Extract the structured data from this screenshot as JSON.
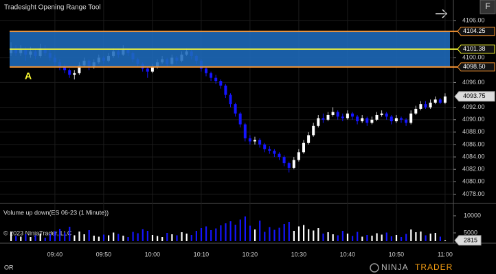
{
  "window": {
    "title": "Tradesight Opening Range Tool",
    "button": "F",
    "footer_label": "OR",
    "logo_left": "NINJA",
    "logo_right": "TRADER"
  },
  "chart_data": [
    {
      "type": "candlestick",
      "up_color": "#ffffff",
      "down_color": "#1515ff",
      "categories": [
        null,
        null,
        null,
        null,
        null,
        null,
        null,
        null,
        null,
        "09:40",
        null,
        null,
        null,
        null,
        null,
        null,
        null,
        null,
        null,
        "09:50",
        null,
        null,
        null,
        null,
        null,
        null,
        null,
        null,
        null,
        "10:00",
        null,
        null,
        null,
        null,
        null,
        null,
        null,
        null,
        null,
        "10:10",
        null,
        null,
        null,
        null,
        null,
        null,
        null,
        null,
        null,
        "10:20",
        null,
        null,
        null,
        null,
        null,
        null,
        null,
        null,
        null,
        "10:30",
        null,
        null,
        null,
        null,
        null,
        null,
        null,
        null,
        null,
        "10:40",
        null,
        null,
        null,
        null,
        null,
        null,
        null,
        null,
        null,
        "10:50",
        null,
        null,
        null,
        null,
        null,
        null,
        null,
        null,
        null,
        "11:00"
      ],
      "open": [
        4100.75,
        4101.5,
        4100.75,
        4101.25,
        4100.5,
        4101,
        4100.25,
        4101.5,
        4100.75,
        4100,
        4099.25,
        4098.5,
        4098,
        4097.25,
        4097.5,
        4098.75,
        4099.5,
        4098.5,
        4099.25,
        4100,
        4099.5,
        4100.25,
        4101,
        4100.5,
        4101.25,
        4100.75,
        4099.75,
        4099,
        4098.25,
        4097.75,
        4098.5,
        4099.25,
        4099.75,
        4099,
        4100,
        4099.5,
        4100.5,
        4101,
        4100.25,
        4099.5,
        4098.25,
        4097.5,
        4096.75,
        4096.25,
        4095.5,
        4094,
        4092.5,
        4091,
        4089.25,
        4087,
        4086.5,
        4086.75,
        4086,
        4085.25,
        4085,
        4084.5,
        4084,
        4083,
        4082.25,
        4083.5,
        4084.75,
        4086.25,
        4087.5,
        4089,
        4090.25,
        4090,
        4090.75,
        4091.25,
        4090.5,
        4090.25,
        4091,
        4090.5,
        4089.75,
        4090.25,
        4089.5,
        4090,
        4090.75,
        4091,
        4090.5,
        4089.75,
        4090.25,
        4090,
        4089.5,
        4091,
        4091.75,
        4092.5,
        4092,
        4092.75,
        4093.25,
        4092.75
      ],
      "high": [
        4102.5,
        4102,
        4102,
        4101.75,
        4101.75,
        4101.5,
        4102.25,
        4102,
        4101.25,
        4100.5,
        4099.75,
        4099,
        4098.25,
        4098,
        4099.25,
        4100,
        4099.75,
        4099.75,
        4100.5,
        4100.25,
        4100.75,
        4101.5,
        4101.5,
        4102,
        4101.5,
        4101,
        4100,
        4099.25,
        4098.5,
        4099,
        4099.75,
        4100.25,
        4100,
        4100.5,
        4100.25,
        4101,
        4101.5,
        4101.25,
        4100.5,
        4099.75,
        4098.5,
        4097.75,
        4097.25,
        4096.5,
        4095.75,
        4094.25,
        4092.75,
        4091.25,
        4089.5,
        4087.5,
        4087.25,
        4087,
        4086.25,
        4085.75,
        4085.25,
        4084.75,
        4084.25,
        4083.25,
        4084,
        4085.25,
        4086.75,
        4088,
        4089.5,
        4090.75,
        4091,
        4091.25,
        4092,
        4091.5,
        4091,
        4091.5,
        4091.25,
        4090.75,
        4090.75,
        4090.5,
        4090.5,
        4091.25,
        4091.5,
        4091.25,
        4090.75,
        4090.75,
        4090.5,
        4090.25,
        4091.5,
        4092.25,
        4093,
        4093,
        4093.25,
        4093.75,
        4093.5,
        4094.25
      ],
      "low": [
        4100.25,
        4100.25,
        4100.25,
        4099.5,
        4100,
        4099.75,
        4100,
        4100.25,
        4099.5,
        4098.75,
        4098,
        4097.5,
        4096.75,
        4096.5,
        4097.25,
        4098.5,
        4098,
        4098.25,
        4099,
        4099,
        4099.25,
        4100,
        4100,
        4100.25,
        4100.25,
        4099.25,
        4098.5,
        4097.75,
        4096.75,
        4097.5,
        4098.25,
        4099,
        4098.5,
        4098.75,
        4099,
        4099.25,
        4100.25,
        4099.75,
        4099,
        4097.75,
        4097,
        4096.25,
        4095.75,
        4095,
        4093.5,
        4092,
        4090.5,
        4088.75,
        4086.5,
        4086,
        4086,
        4085.5,
        4084.75,
        4084.5,
        4084,
        4083.5,
        4082.5,
        4081.5,
        4082,
        4083.25,
        4084.5,
        4086,
        4087.25,
        4088.75,
        4089.5,
        4089.75,
        4090.5,
        4090,
        4089.75,
        4090,
        4090,
        4089.25,
        4089.5,
        4089,
        4089.25,
        4089.75,
        4090.5,
        4090,
        4089.25,
        4089.5,
        4089.5,
        4089,
        4089.25,
        4090.75,
        4091.5,
        4091.75,
        4091.75,
        4092.5,
        4092.5,
        4092.5
      ],
      "close": [
        4101.5,
        4100.75,
        4101.25,
        4100.5,
        4101,
        4100.25,
        4101.5,
        4100.75,
        4100,
        4099.25,
        4098.5,
        4098,
        4097.25,
        4097.5,
        4098.75,
        4099.5,
        4098.5,
        4099.25,
        4100,
        4099.5,
        4100.25,
        4101,
        4100.5,
        4101.25,
        4100.75,
        4099.75,
        4099,
        4098.25,
        4097.75,
        4098.5,
        4099.25,
        4099.75,
        4099,
        4100,
        4099.5,
        4100.5,
        4101,
        4100.25,
        4099.5,
        4098.25,
        4097.5,
        4096.75,
        4096.25,
        4095.5,
        4094,
        4092.5,
        4091,
        4089.25,
        4087,
        4086.5,
        4086.75,
        4086,
        4085.25,
        4085,
        4084.5,
        4084,
        4083,
        4082.25,
        4083.5,
        4084.75,
        4086.25,
        4087.5,
        4089,
        4090.25,
        4090,
        4090.75,
        4091.25,
        4090.5,
        4090.25,
        4091,
        4090.5,
        4089.75,
        4090.25,
        4089.5,
        4090,
        4090.75,
        4091,
        4090.5,
        4089.75,
        4090.25,
        4090,
        4089.5,
        4091,
        4091.75,
        4092.5,
        4092,
        4092.75,
        4093.25,
        4092.75,
        4093.75
      ],
      "ylim": [
        4076.5,
        4109.3
      ],
      "yticks": [
        {
          "value": 4106,
          "label": "4106.00"
        },
        {
          "value": 4100,
          "label": "4100.00"
        },
        {
          "value": 4096,
          "label": "4096.00"
        },
        {
          "value": 4092,
          "label": "4092.00"
        },
        {
          "value": 4090,
          "label": "4090.00"
        },
        {
          "value": 4088,
          "label": "4088.00"
        },
        {
          "value": 4086,
          "label": "4086.00"
        },
        {
          "value": 4084,
          "label": "4084.00"
        },
        {
          "value": 4082,
          "label": "4082.00"
        },
        {
          "value": 4080,
          "label": "4080.00"
        },
        {
          "value": 4078,
          "label": "4078.00"
        }
      ],
      "opening_range": {
        "high": 4104.25,
        "mid": 4101.38,
        "low": {
          "value": 4098.5,
          "label": "4098.50"
        },
        "fill": "#1e6bbd",
        "edge_color": "#ff9933",
        "mid_color": "#ffff33",
        "marker": "A"
      },
      "last_price": 4093.75,
      "grid": true
    },
    {
      "type": "volume",
      "title": "Volume up down(ES 06-23 (1 Minute))",
      "annotation": "© 2023 NinjaTrader, LLC",
      "values": [
        5200,
        4100,
        3900,
        4600,
        3800,
        4300,
        4800,
        3600,
        4700,
        5500,
        6200,
        5100,
        6800,
        4300,
        5400,
        4600,
        5800,
        4200,
        3900,
        4500,
        4300,
        5100,
        4700,
        4200,
        3800,
        5300,
        4900,
        6100,
        5600,
        4400,
        4100,
        3800,
        5000,
        4600,
        4300,
        5200,
        4800,
        4400,
        5600,
        6400,
        6900,
        5800,
        6300,
        7200,
        7800,
        8400,
        7400,
        8900,
        9800,
        7100,
        6000,
        8600,
        5300,
        6700,
        5900,
        6500,
        7600,
        8200,
        5600,
        6900,
        7300,
        6100,
        5700,
        6400,
        4800,
        5200,
        4600,
        4300,
        5600,
        4800,
        4100,
        5300,
        3900,
        4400,
        4200,
        4900,
        4500,
        5100,
        4000,
        4400,
        3800,
        4700,
        6000,
        5200,
        5400,
        4300,
        4800,
        5000,
        3900,
        2815
      ],
      "ylim": [
        2600,
        12000
      ],
      "yticks": [
        10000,
        5000
      ]
    }
  ]
}
